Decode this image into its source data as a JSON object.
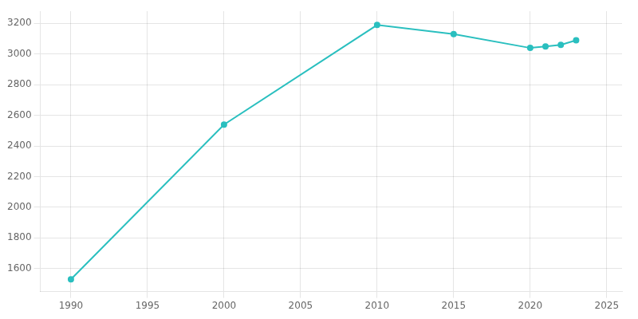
{
  "chart_data": {
    "type": "line",
    "x": [
      1990,
      2000,
      2010,
      2015,
      2020,
      2021,
      2022,
      2023
    ],
    "values": [
      1530,
      2540,
      3190,
      3130,
      3040,
      3050,
      3060,
      3090
    ],
    "color": "#2abfbf",
    "marker": "circle",
    "xlim": [
      1988,
      2026
    ],
    "ylim": [
      1450,
      3280
    ],
    "xticks": [
      1990,
      1995,
      2000,
      2005,
      2010,
      2015,
      2020,
      2025
    ],
    "yticks": [
      1600,
      1800,
      2000,
      2200,
      2400,
      2600,
      2800,
      3000,
      3200
    ],
    "grid": true
  }
}
